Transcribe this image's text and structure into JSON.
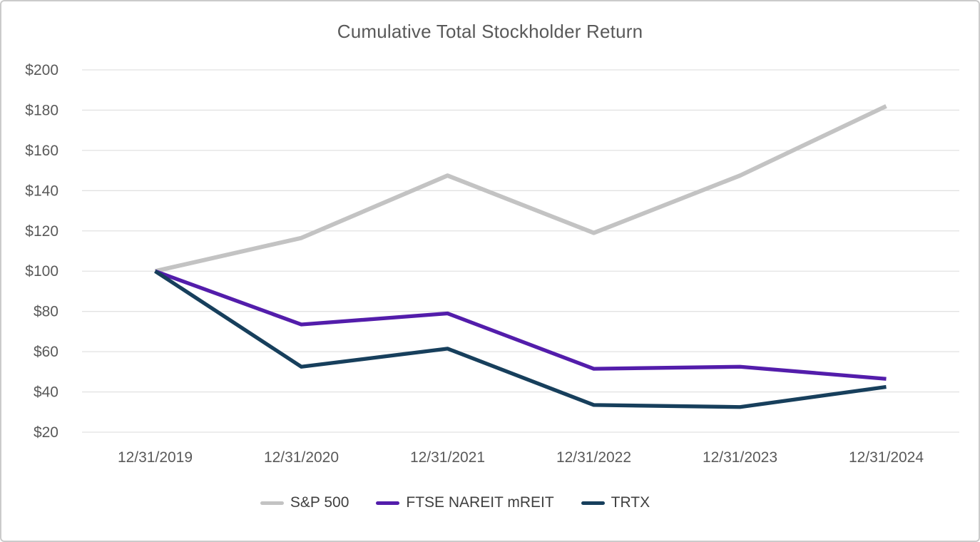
{
  "chart_data": {
    "type": "line",
    "title": "Cumulative Total Stockholder Return",
    "x_labels": [
      "12/31/2019",
      "12/31/2020",
      "12/31/2021",
      "12/31/2022",
      "12/31/2023",
      "12/31/2024"
    ],
    "series": [
      {
        "name": "S&P 500",
        "color": "#c3c3c3",
        "values": [
          100,
          116.5,
          147.5,
          119,
          147.5,
          182
        ]
      },
      {
        "name": "FTSE NAREIT mREIT",
        "color": "#531dab",
        "values": [
          100,
          73.5,
          79,
          51.5,
          52.5,
          46.5
        ]
      },
      {
        "name": "TRTX",
        "color": "#173f5c",
        "values": [
          100,
          52.5,
          61.5,
          33.5,
          32.5,
          42.5
        ]
      }
    ],
    "y_axis": {
      "min": 20,
      "max": 200,
      "step": 20,
      "tick_prefix": "$",
      "tick_labels": [
        "$200",
        "$180",
        "$160",
        "$140",
        "$120",
        "$100",
        "$80",
        "$60",
        "$40",
        "$20"
      ]
    },
    "grid": true,
    "legend_position": "bottom",
    "colors": {
      "title_text": "#595959",
      "axis_text": "#595959",
      "legend_text": "#3f3f3f",
      "gridline": "#e2e2e2",
      "border": "#cbcbcb",
      "background": "#ffffff"
    }
  }
}
